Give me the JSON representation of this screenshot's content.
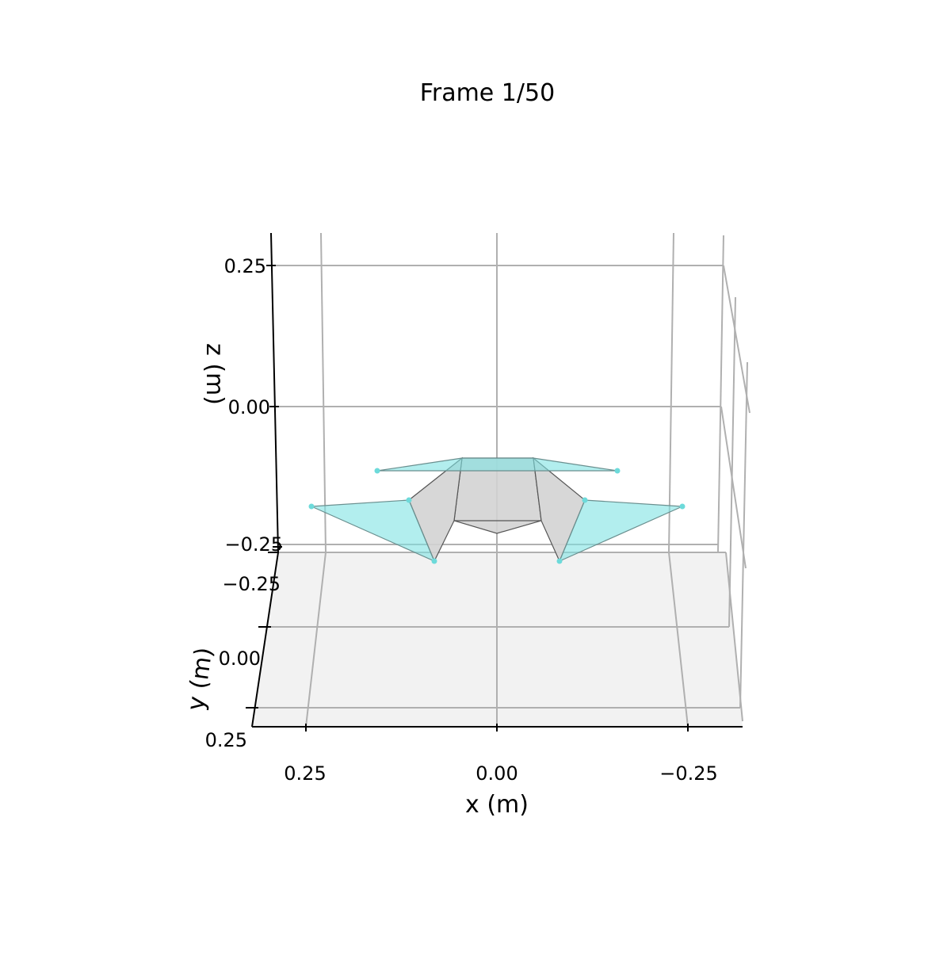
{
  "chart_data": {
    "type": "3d-surface",
    "title": "Frame 1/50",
    "xlabel": "x (m)",
    "ylabel": "y (m)",
    "zlabel": "z (m)",
    "x_ticks": [
      "0.25",
      "0.00",
      "−0.25"
    ],
    "y_ticks": [
      "−0.25",
      "0.00",
      "0.25"
    ],
    "z_ticks": [
      "0.25",
      "0.00",
      "−0.25"
    ],
    "grid": true,
    "colors": {
      "grid": "#b0b0b0",
      "pane_floor": "#f2f2f2",
      "body_fill": "#d3d3d3",
      "body_edge": "#555555",
      "flap_fill": "#7fe3e3",
      "flap_edge": "#6a8f8f",
      "marker": "#6ddada"
    },
    "markers": [
      "left-upper",
      "left-outer",
      "left-inner",
      "left-bottom",
      "right-upper",
      "right-outer",
      "right-inner",
      "right-bottom"
    ]
  }
}
